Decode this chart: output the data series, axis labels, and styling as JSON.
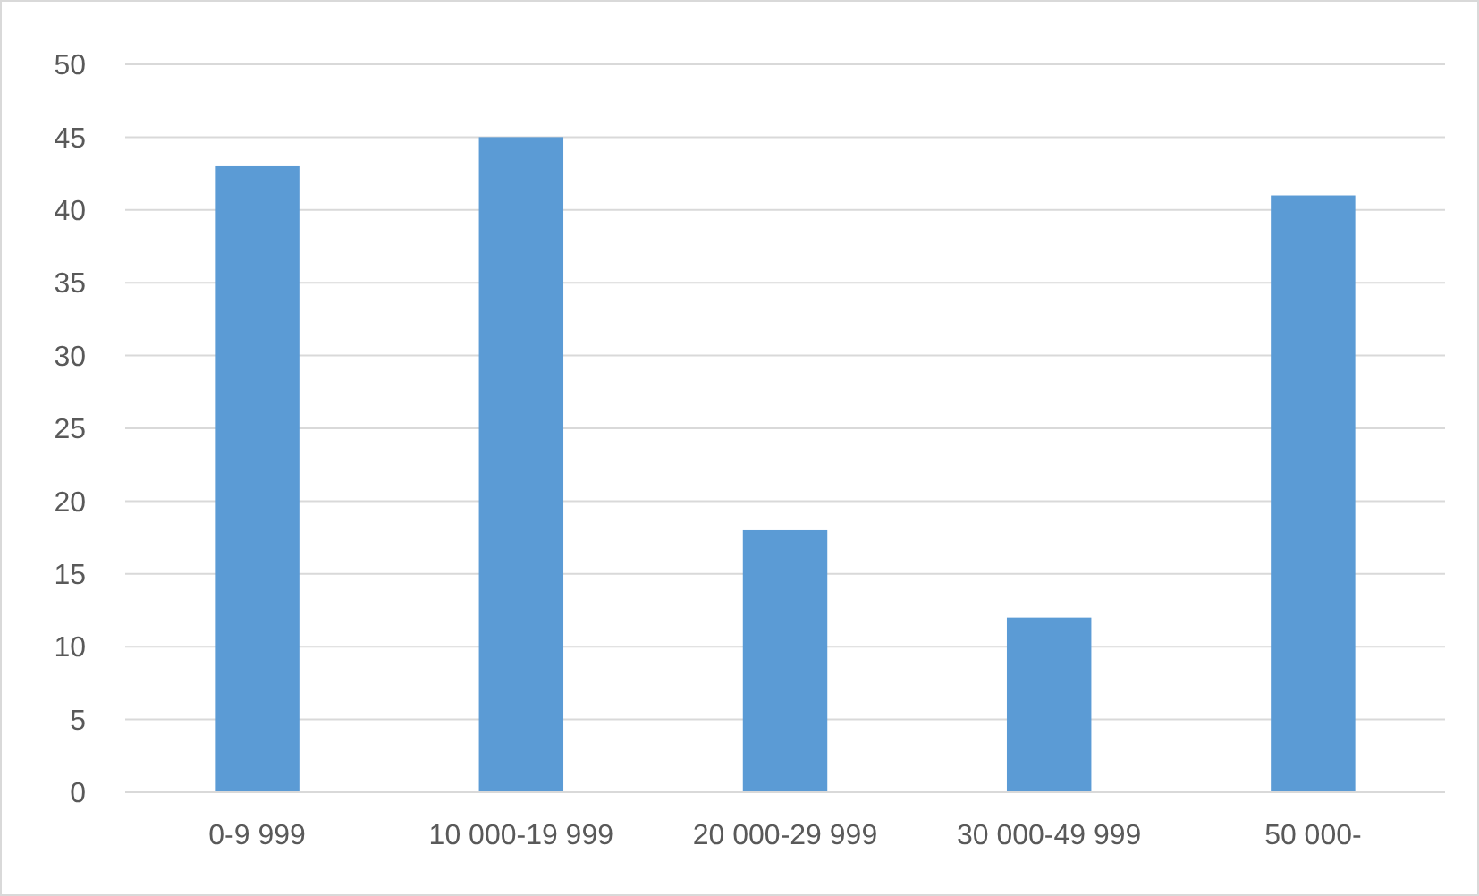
{
  "chart_data": {
    "type": "bar",
    "categories": [
      "0-9 999",
      "10 000-19 999",
      "20 000-29 999",
      "30 000-49 999",
      "50 000-"
    ],
    "values": [
      43,
      45,
      18,
      12,
      41
    ],
    "color": "#5b9bd5",
    "ylim": [
      0,
      50
    ],
    "yticks": [
      0,
      5,
      10,
      15,
      20,
      25,
      30,
      35,
      40,
      45,
      50
    ],
    "grid": "y"
  }
}
